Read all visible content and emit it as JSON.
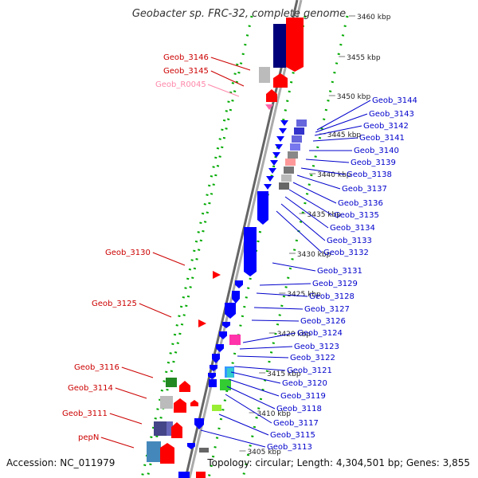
{
  "header": {
    "title": "Geobacter sp. FRC-32, complete genome"
  },
  "footer": {
    "accession": "Accession: NC_011979",
    "topology": "Topology: circular; Length: 4,304,501 bp; Genes: 3,855"
  },
  "colors": {
    "forward": "#ff0000",
    "reverse": "#0000ff",
    "label_left": "#cc0000",
    "label_right": "#0000cc",
    "rna_label": "#ff88aa",
    "grid": "#00aa00"
  },
  "scale_ticks": [
    "3460 kbp",
    "3455 kbp",
    "3450 kbp",
    "3445 kbp",
    "3440 kbp",
    "3435 kbp",
    "3430 kbp",
    "3425 kbp",
    "3420 kbp",
    "3415 kbp",
    "3410 kbp",
    "3405 kbp"
  ],
  "left_labels": [
    "Geob_3146",
    "Geob_3145",
    "Geob_R0045",
    "Geob_3130",
    "Geob_3125",
    "Geob_3116",
    "Geob_3114",
    "Geob_3111",
    "pepN"
  ],
  "right_labels": [
    "Geob_3144",
    "Geob_3143",
    "Geob_3142",
    "Geob_3141",
    "Geob_3140",
    "Geob_3139",
    "Geob_3138",
    "Geob_3137",
    "Geob_3136",
    "Geob_3135",
    "Geob_3134",
    "Geob_3133",
    "Geob_3132",
    "Geob_3131",
    "Geob_3129",
    "Geob_3128",
    "Geob_3127",
    "Geob_3126",
    "Geob_3124",
    "Geob_3123",
    "Geob_3122",
    "Geob_3121",
    "Geob_3120",
    "Geob_3119",
    "Geob_3118",
    "Geob_3117",
    "Geob_3115",
    "Geob_3113"
  ]
}
